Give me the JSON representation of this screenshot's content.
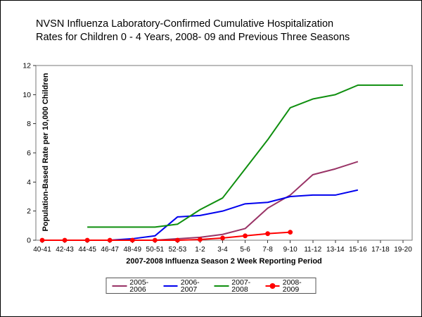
{
  "header": {
    "title_line1": "NVSN Influenza Laboratory-Confirmed Cumulative Hospitalization",
    "title_line2": "Rates for Children 0 - 4 Years, 2008- 09 and Previous Three Seasons"
  },
  "chart_data": {
    "type": "line",
    "title": "NVSN Influenza Laboratory-Confirmed Cumulative Hospitalization Rates for Children 0 - 4 Years, 2008- 09 and Previous Three Seasons",
    "xlabel": "2007-2008 Influenza Season 2 Week Reporting Period",
    "ylabel": "Population-Based Rate per 10,000 Children",
    "ylim": [
      0,
      12
    ],
    "ytick_step": 2,
    "ytick_labels": [
      "0",
      "2",
      "4",
      "6",
      "8",
      "10",
      "12"
    ],
    "grid": false,
    "legend_position": "bottom",
    "categories": [
      "40-41",
      "42-43",
      "44-45",
      "46-47",
      "48-49",
      "50-51",
      "52-53",
      "1-2",
      "3-4",
      "5-6",
      "7-8",
      "9-10",
      "11-12",
      "13-14",
      "15-16",
      "17-18",
      "19-20"
    ],
    "series": [
      {
        "name": "2005-2006",
        "color": "#993366",
        "marker": false,
        "values": [
          0,
          0,
          0,
          0,
          0,
          0,
          0.1,
          0.2,
          0.4,
          0.8,
          2.2,
          3.1,
          4.5,
          4.9,
          5.4,
          null,
          null
        ]
      },
      {
        "name": "2006-2007",
        "color": "#0000EE",
        "marker": false,
        "values": [
          0,
          0,
          0,
          0,
          0.1,
          0.3,
          1.6,
          1.7,
          2.0,
          2.5,
          2.6,
          3.0,
          3.1,
          3.1,
          3.45,
          null,
          null
        ]
      },
      {
        "name": "2007-2008",
        "color": "#0F8F0F",
        "marker": false,
        "values": [
          null,
          null,
          0.9,
          0.9,
          0.9,
          0.9,
          1.1,
          2.1,
          2.9,
          4.9,
          6.9,
          9.1,
          9.7,
          10.0,
          10.65,
          10.65,
          10.65
        ]
      },
      {
        "name": "2008-2009",
        "color": "#FF0000",
        "marker": true,
        "values": [
          0,
          0,
          0,
          0,
          0,
          0,
          0,
          0.05,
          0.15,
          0.3,
          0.45,
          0.55,
          null,
          null,
          null,
          null,
          null
        ]
      }
    ],
    "axis_color": "#777777",
    "tick_color": "#333333"
  }
}
